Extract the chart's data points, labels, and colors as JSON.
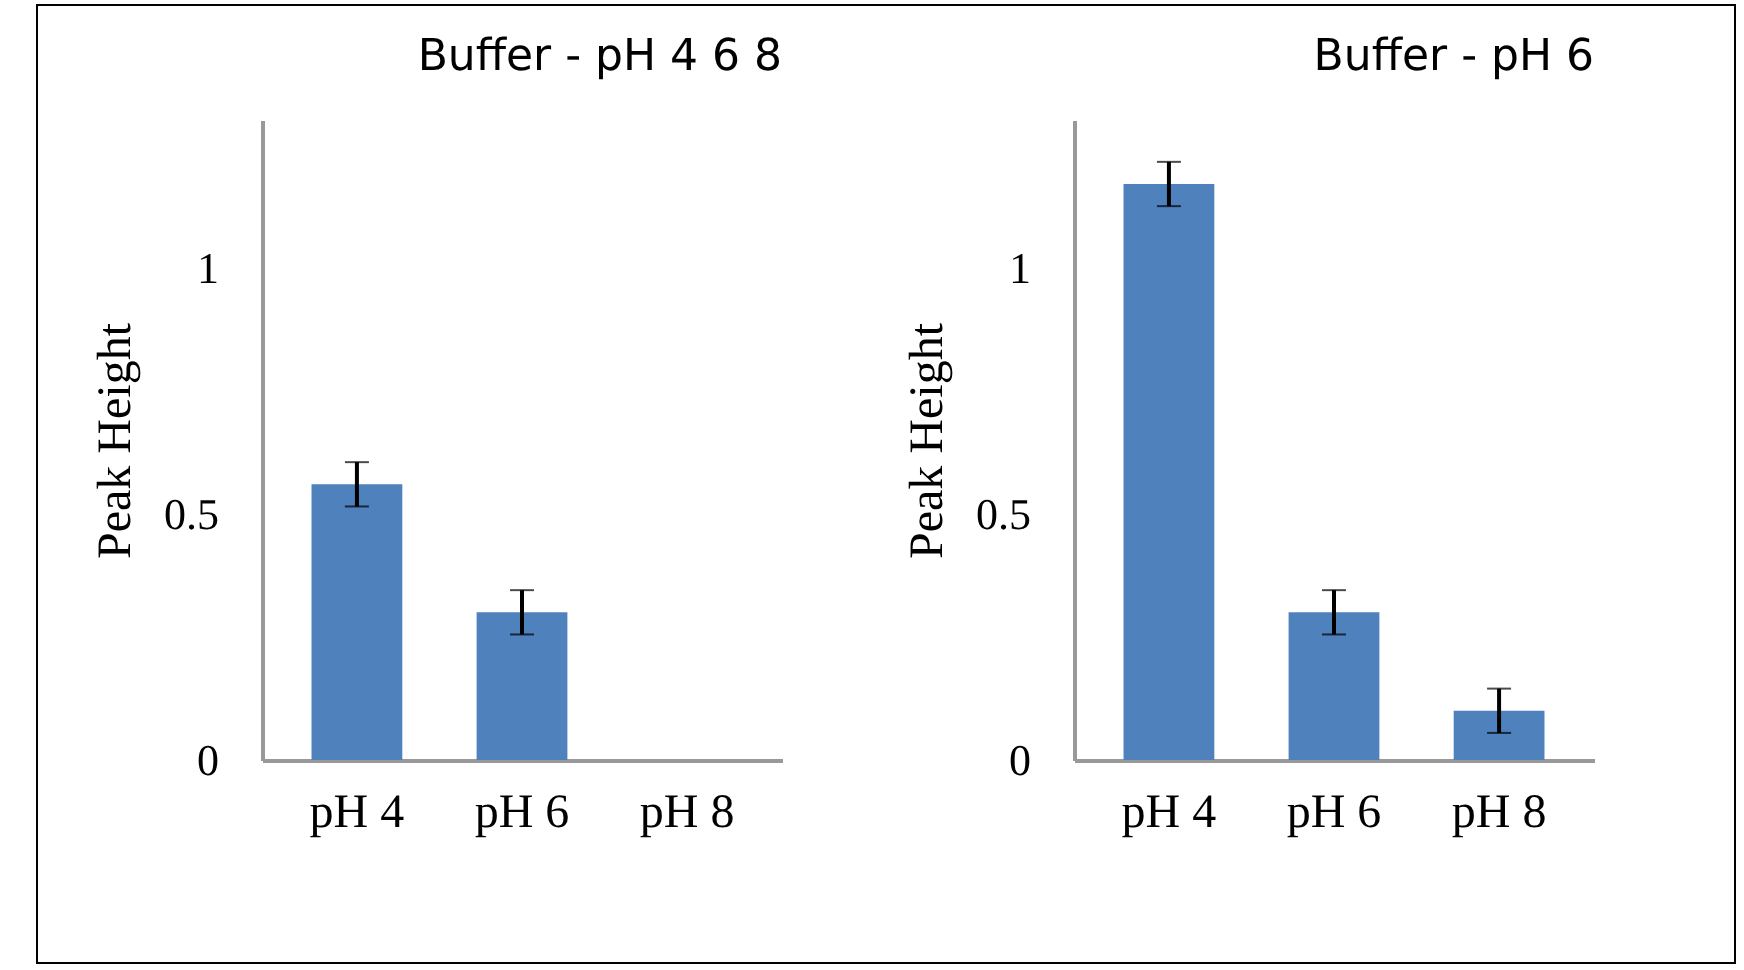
{
  "chart_data": [
    {
      "type": "bar",
      "title": "Buffer - pH 4 6 8",
      "ylabel": "Peak Height",
      "categories": [
        "pH 4",
        "pH 6",
        "pH 8"
      ],
      "values": [
        0.56,
        0.3,
        0.0
      ],
      "errors": [
        0.045,
        0.045,
        null
      ],
      "color": "#4f81bd",
      "ylim": [
        0,
        1.3
      ],
      "yticks": [
        0,
        0.5,
        1
      ],
      "grid": false
    },
    {
      "type": "bar",
      "title": "Buffer - pH 6",
      "ylabel": "Peak Height",
      "categories": [
        "pH 4",
        "pH 6",
        "pH 8"
      ],
      "values": [
        1.17,
        0.3,
        0.1
      ],
      "errors": [
        0.045,
        0.045,
        0.045
      ],
      "color": "#4f81bd",
      "ylim": [
        0,
        1.3
      ],
      "yticks": [
        0,
        0.5,
        1
      ],
      "grid": false
    }
  ]
}
